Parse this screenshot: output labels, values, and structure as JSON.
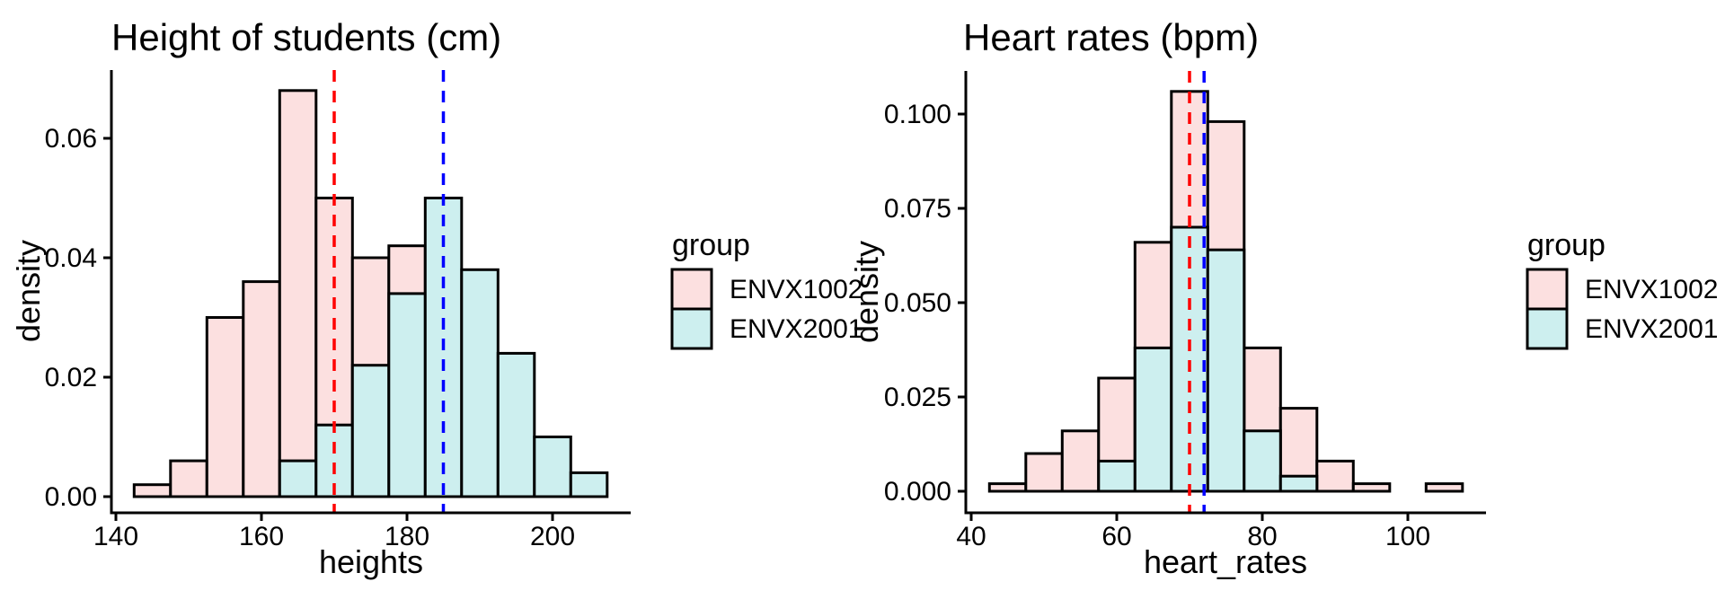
{
  "chart_data": [
    {
      "type": "histogram",
      "title": "Height of students (cm)",
      "xlabel": "heights",
      "ylabel": "density",
      "bin_start": 142.5,
      "bin_width": 5,
      "x_ticks": [
        140,
        160,
        180,
        200
      ],
      "y_ticks": [
        {
          "value": 0.0,
          "label": "0.00"
        },
        {
          "value": 0.02,
          "label": "0.02"
        },
        {
          "value": 0.04,
          "label": "0.04"
        },
        {
          "value": 0.06,
          "label": "0.06"
        }
      ],
      "series": [
        {
          "name": "ENVX1002",
          "color_key": "pink",
          "densities": [
            0.002,
            0.006,
            0.03,
            0.036,
            0.068,
            0.05,
            0.04,
            0.042,
            null,
            null,
            null,
            null,
            null
          ]
        },
        {
          "name": "ENVX2001",
          "color_key": "cyan",
          "densities": [
            null,
            null,
            null,
            null,
            0.006,
            0.012,
            0.022,
            0.034,
            0.05,
            0.038,
            0.024,
            0.01,
            0.004
          ]
        }
      ],
      "vlines": [
        {
          "x": 170,
          "color_key": "red",
          "style": "dashed"
        },
        {
          "x": 185,
          "color_key": "blue",
          "style": "dashed"
        }
      ],
      "xlim": [
        139.25,
        210.75
      ],
      "ylim": [
        0,
        0.0714
      ],
      "grid": false,
      "legend_position": "right"
    },
    {
      "type": "histogram",
      "title": "Heart rates (bpm)",
      "xlabel": "heart_rates",
      "ylabel": "density",
      "bin_start": 42.5,
      "bin_width": 5,
      "x_ticks": [
        40,
        60,
        80,
        100
      ],
      "y_ticks": [
        {
          "value": 0.0,
          "label": "0.000"
        },
        {
          "value": 0.025,
          "label": "0.025"
        },
        {
          "value": 0.05,
          "label": "0.050"
        },
        {
          "value": 0.075,
          "label": "0.075"
        },
        {
          "value": 0.1,
          "label": "0.100"
        }
      ],
      "series": [
        {
          "name": "ENVX1002",
          "color_key": "pink",
          "densities": [
            0.002,
            0.01,
            0.016,
            0.03,
            0.066,
            0.106,
            0.098,
            0.038,
            0.022,
            0.008,
            0.002,
            null,
            0.002
          ]
        },
        {
          "name": "ENVX2001",
          "color_key": "cyan",
          "densities": [
            null,
            null,
            null,
            0.008,
            0.038,
            0.07,
            0.064,
            0.016,
            0.004,
            null,
            null,
            null,
            null
          ]
        }
      ],
      "vlines": [
        {
          "x": 70,
          "color_key": "red",
          "style": "dashed"
        },
        {
          "x": 72,
          "color_key": "blue",
          "style": "dashed"
        }
      ],
      "xlim": [
        39.25,
        110.75
      ],
      "ylim": [
        0,
        0.1113
      ],
      "grid": false,
      "legend_position": "right"
    }
  ],
  "legend": {
    "title": "group",
    "entries": [
      {
        "label": "ENVX1002",
        "color_key": "pink"
      },
      {
        "label": "ENVX2001",
        "color_key": "cyan"
      }
    ]
  },
  "colors": {
    "pink": "#FCE0E0",
    "cyan": "#CDEFEF",
    "red": "#FF0000",
    "blue": "#0000FF",
    "outline": "#000000"
  }
}
